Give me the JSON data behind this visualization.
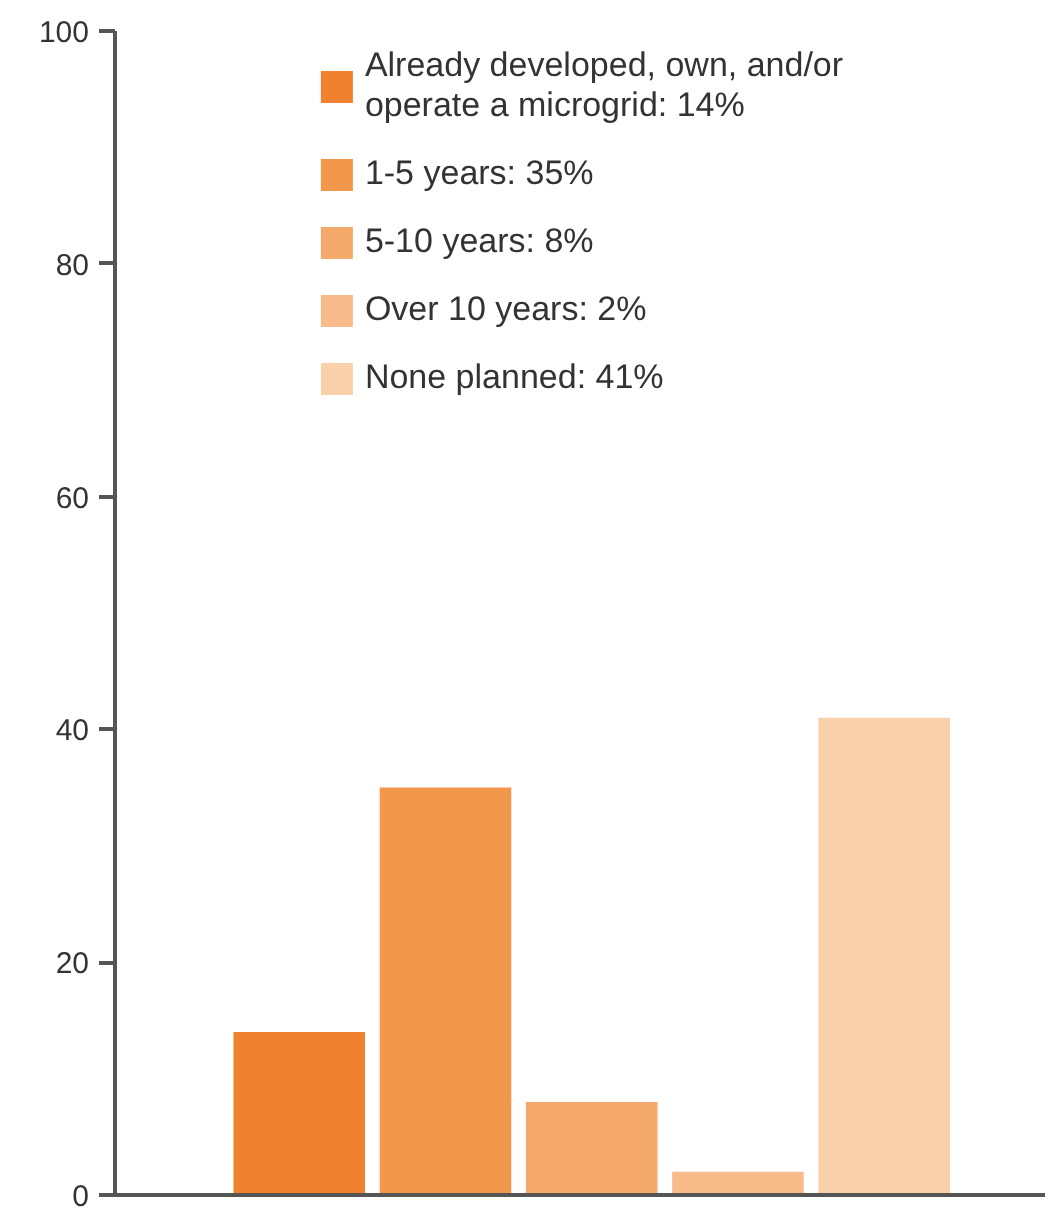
{
  "chart_data": {
    "type": "bar",
    "categories": [
      null,
      null,
      null,
      null,
      null
    ],
    "series": [
      {
        "name": "Already developed, own, and/or operate a microgrid: 14%",
        "color": "#f0812e",
        "values": [
          14,
          null,
          null,
          null,
          null
        ]
      },
      {
        "name": "1-5 years: 35%",
        "color": "#f3984a",
        "values": [
          null,
          35,
          null,
          null,
          null
        ]
      },
      {
        "name": "5-10 years: 8%",
        "color": "#f5a96a",
        "values": [
          null,
          null,
          8,
          null,
          null
        ]
      },
      {
        "name": "Over 10 years: 2%",
        "color": "#f7bc8a",
        "values": [
          null,
          null,
          null,
          2,
          null
        ]
      },
      {
        "name": "None planned: 41%",
        "color": "#fad0ab",
        "values": [
          null,
          null,
          null,
          null,
          41
        ]
      }
    ],
    "ylim": [
      0,
      100
    ],
    "yticks": [
      0,
      20,
      40,
      60,
      80,
      100
    ],
    "grid": false,
    "legend": "top"
  }
}
